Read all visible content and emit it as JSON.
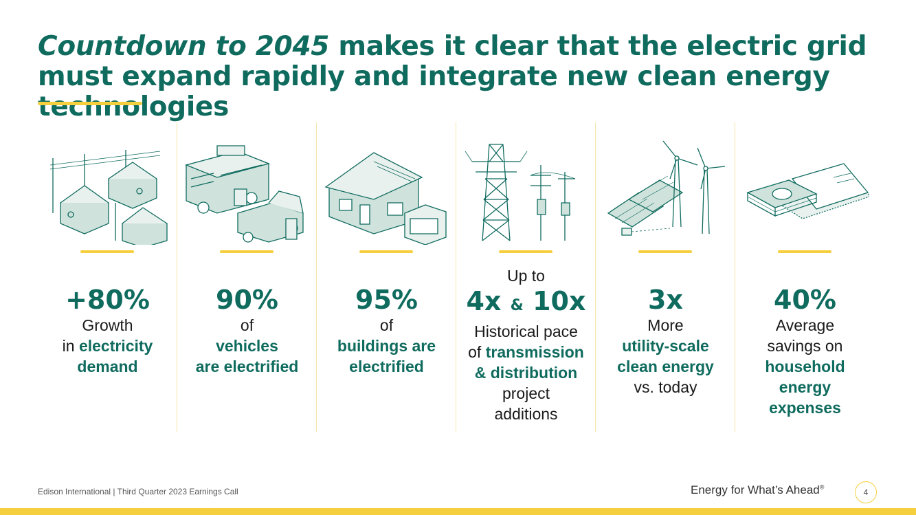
{
  "title": {
    "italic": "Countdown to 2045",
    "rest": " makes it clear that the electric grid must expand rapidly and integrate new clean energy technologies"
  },
  "columns": [
    {
      "icon": "houses-power-lines-icon",
      "pre": "",
      "stat": "+80%",
      "stat_b": "",
      "amp": "",
      "lines": [
        {
          "plain": "Growth",
          "bold": ""
        },
        {
          "plain": "in ",
          "bold": "electricity"
        },
        {
          "plain": "",
          "bold": "demand"
        }
      ]
    },
    {
      "icon": "electric-vehicles-icon",
      "pre": "",
      "stat": "90%",
      "stat_b": "",
      "amp": "",
      "lines": [
        {
          "plain": "of",
          "bold": ""
        },
        {
          "plain": "",
          "bold": "vehicles"
        },
        {
          "plain": "",
          "bold": "are electrified"
        }
      ]
    },
    {
      "icon": "house-appliance-icon",
      "pre": "",
      "stat": "95%",
      "stat_b": "",
      "amp": "",
      "lines": [
        {
          "plain": "of",
          "bold": ""
        },
        {
          "plain": "",
          "bold": "buildings are"
        },
        {
          "plain": "",
          "bold": "electrified"
        }
      ]
    },
    {
      "icon": "transmission-tower-icon",
      "pre": "Up to",
      "stat": "4x",
      "stat_b": "10x",
      "amp": "&",
      "lines": [
        {
          "plain": "Historical pace",
          "bold": ""
        },
        {
          "plain": "of ",
          "bold": "transmission"
        },
        {
          "plain": "",
          "bold": "& distribution"
        },
        {
          "plain": "project",
          "bold": ""
        },
        {
          "plain": "additions",
          "bold": ""
        }
      ]
    },
    {
      "icon": "solar-wind-icon",
      "pre": "",
      "stat": "3x",
      "stat_b": "",
      "amp": "",
      "lines": [
        {
          "plain": "More",
          "bold": ""
        },
        {
          "plain": "",
          "bold": "utility-scale"
        },
        {
          "plain": "",
          "bold": "clean energy"
        },
        {
          "plain": "vs. today",
          "bold": ""
        }
      ]
    },
    {
      "icon": "money-bill-icon",
      "pre": "",
      "stat": "40%",
      "stat_b": "",
      "amp": "",
      "lines": [
        {
          "plain": "Average",
          "bold": ""
        },
        {
          "plain": "savings on",
          "bold": ""
        },
        {
          "plain": "",
          "bold": "household"
        },
        {
          "plain": "",
          "bold": "energy"
        },
        {
          "plain": "",
          "bold": "expenses"
        }
      ]
    }
  ],
  "footer": {
    "left": "Edison International |  Third Quarter 2023 Earnings Call",
    "tagline": "Energy for What’s Ahead",
    "reg": "®",
    "page": "4"
  },
  "colors": {
    "teal": "#0f6b5e",
    "yellow": "#f6cf3f",
    "illustration_fill": "#cfe3dc"
  }
}
